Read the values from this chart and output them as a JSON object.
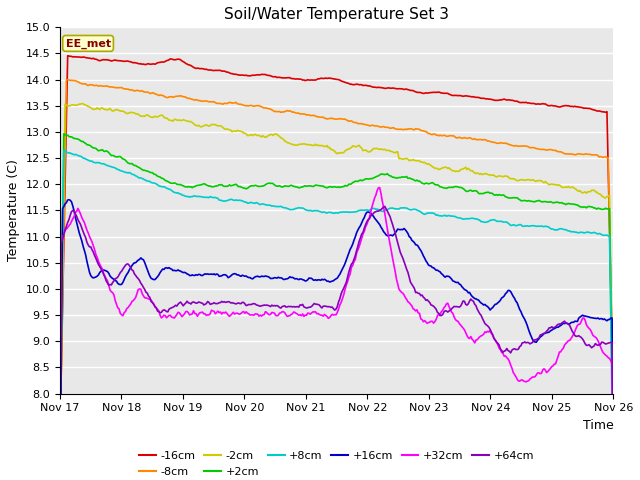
{
  "title": "Soil/Water Temperature Set 3",
  "xlabel": "Time",
  "ylabel": "Temperature (C)",
  "ylim": [
    8.0,
    15.0
  ],
  "fig_bg": "#ffffff",
  "plot_bg": "#e8e8e8",
  "annotation_text": "EE_met",
  "annotation_bg": "#ffffcc",
  "annotation_border": "#aaaa00",
  "series_order": [
    "-16cm",
    "-8cm",
    "-2cm",
    "+2cm",
    "+8cm",
    "+16cm",
    "+32cm",
    "+64cm"
  ],
  "series_colors": {
    "-16cm": "#dd0000",
    "-8cm": "#ff8800",
    "-2cm": "#cccc00",
    "+2cm": "#00cc00",
    "+8cm": "#00cccc",
    "+16cm": "#0000cc",
    "+32cm": "#ff00ff",
    "+64cm": "#8800bb"
  },
  "xtick_labels": [
    "Nov 17",
    "Nov 18",
    "Nov 19",
    "Nov 20",
    "Nov 21",
    "Nov 22",
    "Nov 23",
    "Nov 24",
    "Nov 25",
    "Nov 26"
  ],
  "num_points": 432
}
